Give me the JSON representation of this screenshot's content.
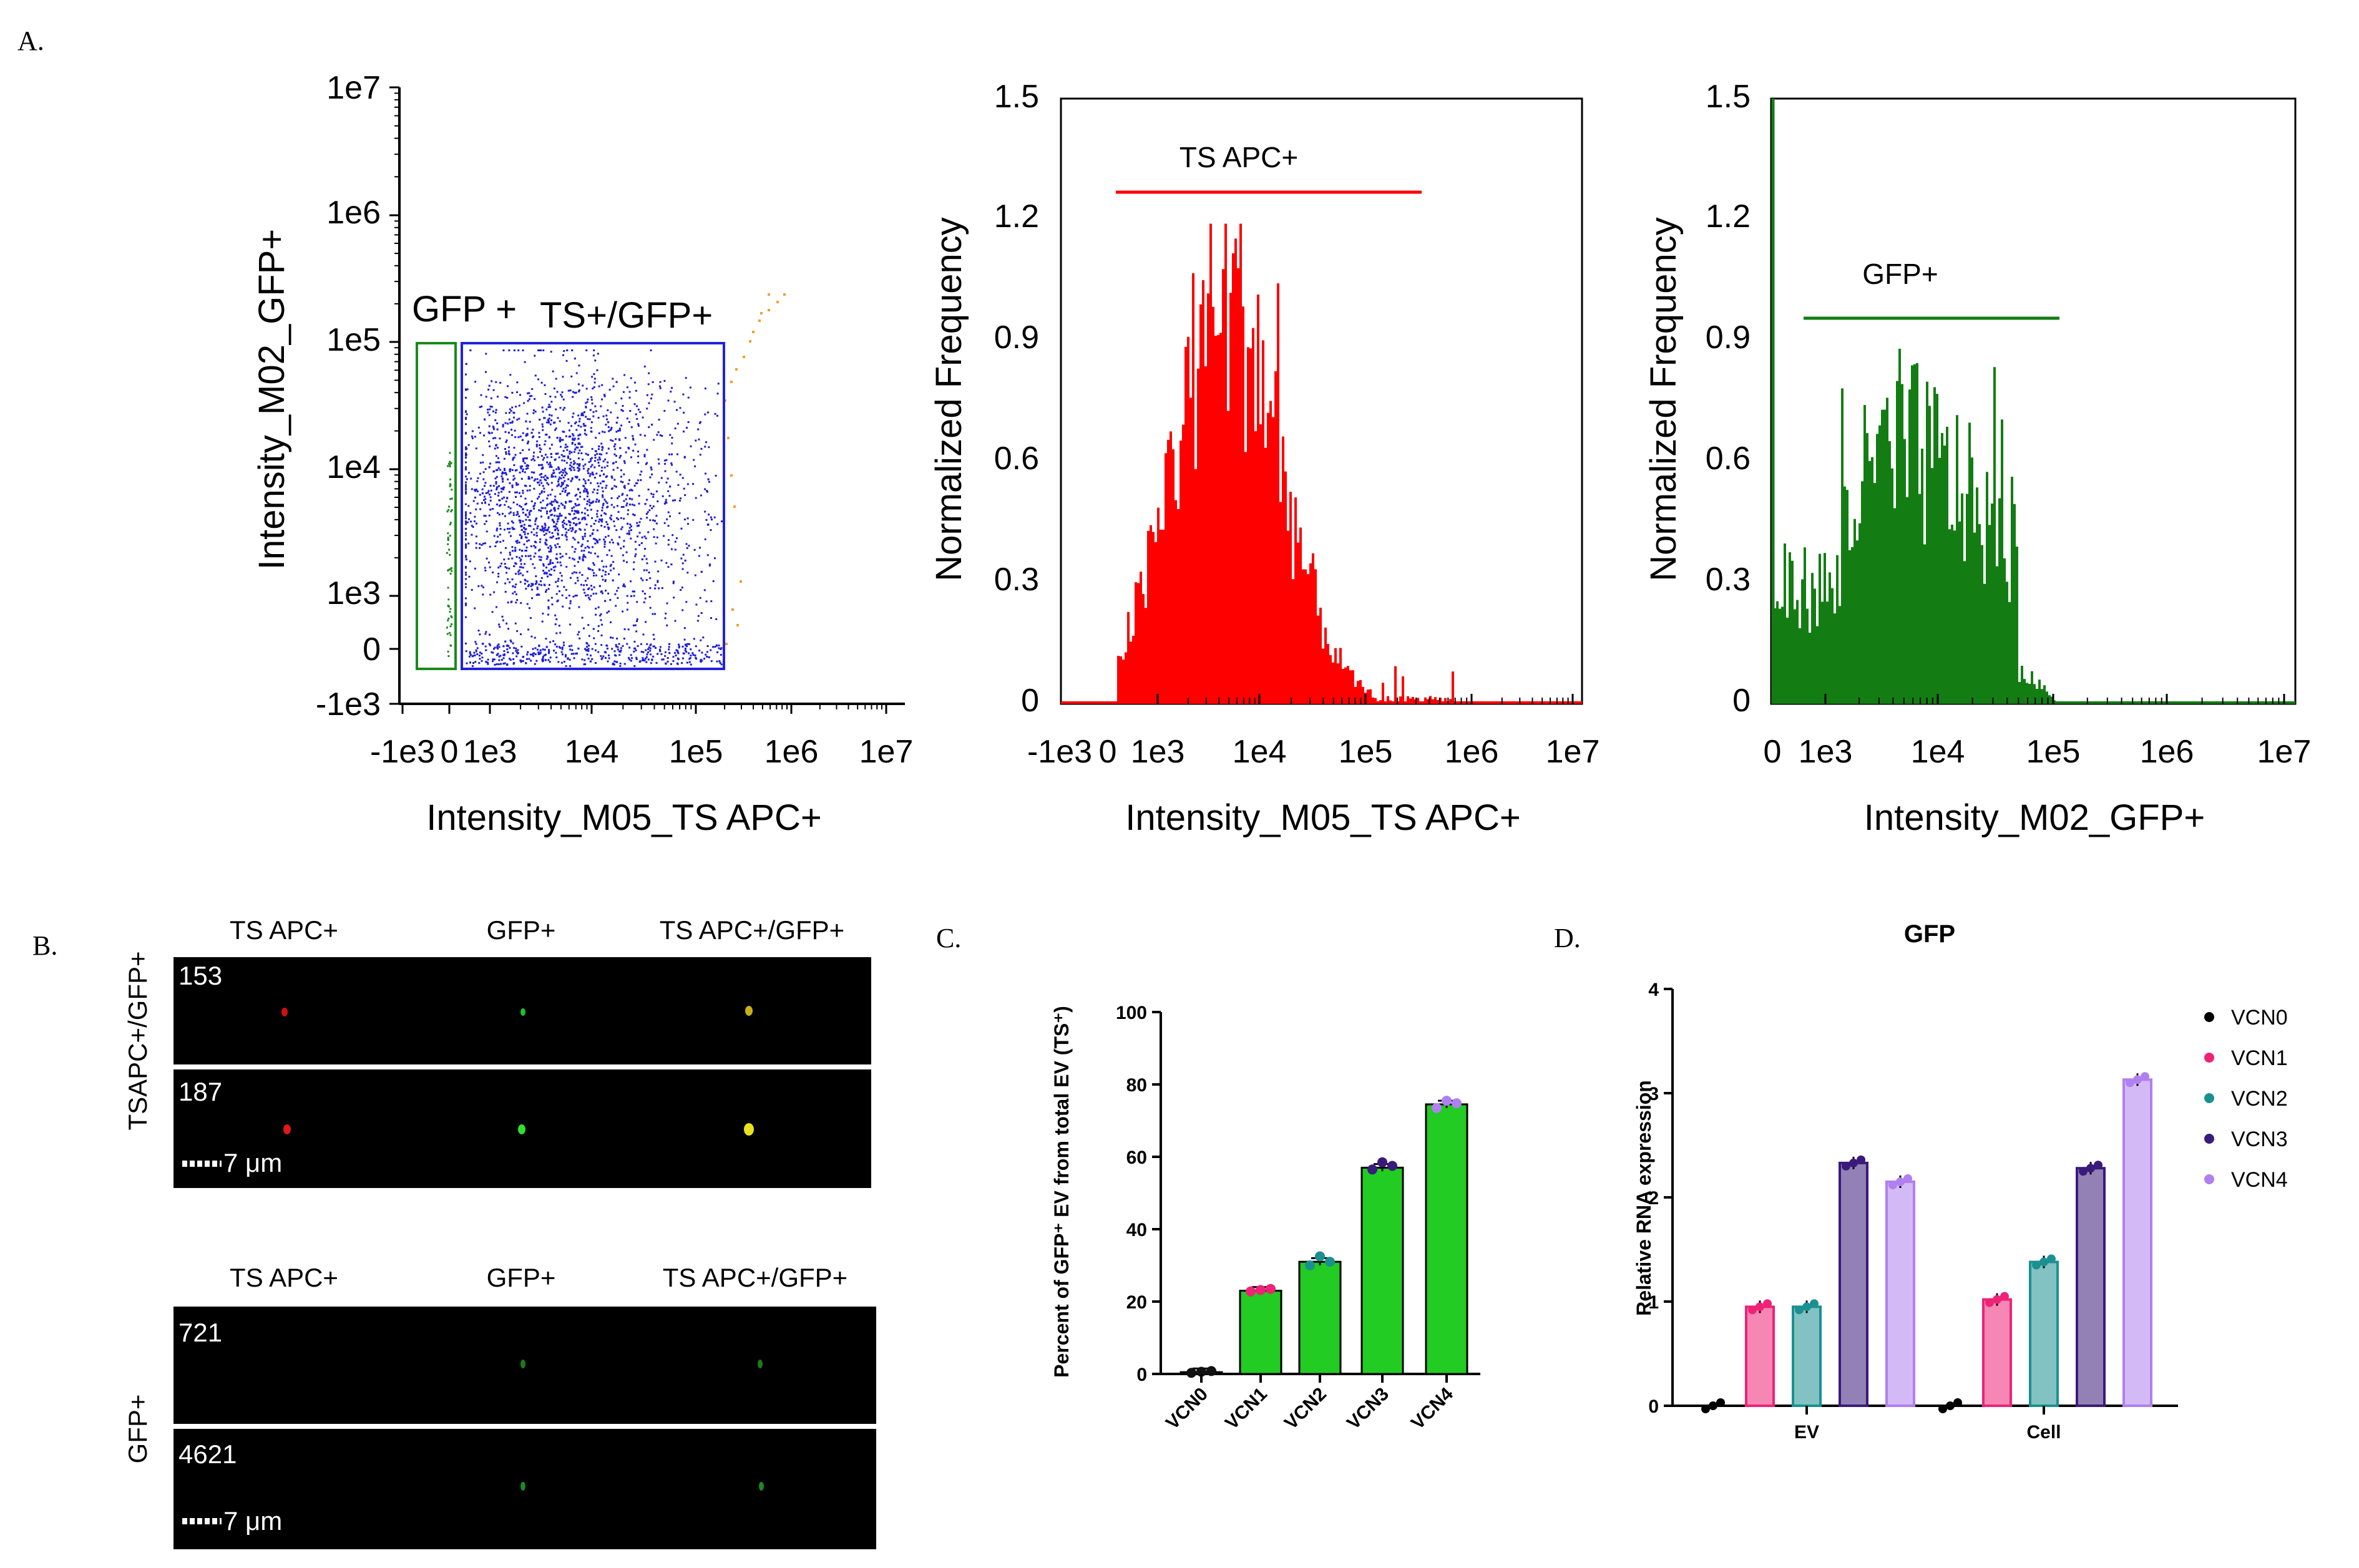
{
  "panel_letters": {
    "a": "A.",
    "b": "B.",
    "c": "C.",
    "d": "D."
  },
  "chart_data": [
    {
      "type": "scatter",
      "panel": "A-scatter",
      "xlabel": "Intensity_M05_TS APC+",
      "ylabel": "Intensity_M02_GFP+",
      "x_ticks": [
        "-1e3",
        "0",
        "1e3",
        "1e4",
        "1e5",
        "1e6",
        "1e7"
      ],
      "y_ticks": [
        "1e7",
        "1e6",
        "1e5",
        "1e4",
        "1e3",
        "0",
        "-1e3"
      ],
      "gates": [
        {
          "name": "GFP +",
          "color": "#1a8a1a"
        },
        {
          "name": "TS+/GFP+",
          "color": "#2222dd"
        }
      ],
      "point_color": "#1f1fd6",
      "outlier_color": "#f0a030"
    },
    {
      "type": "bar",
      "panel": "A-hist-red",
      "xlabel": "Intensity_M05_TS APC+",
      "ylabel": "Normalized Frequency",
      "x_ticks": [
        "-1e3",
        "0",
        "1e3",
        "1e4",
        "1e5",
        "1e6",
        "1e7"
      ],
      "y_ticks": [
        "0",
        "0.3",
        "0.6",
        "0.9",
        "1.2",
        "1.5"
      ],
      "ylim": [
        0,
        1.5
      ],
      "gate_label": "TS APC+",
      "color": "#ff0000",
      "peak": 1.19
    },
    {
      "type": "bar",
      "panel": "A-hist-green",
      "xlabel": "Intensity_M02_GFP+",
      "ylabel": "Normalized Frequency",
      "x_ticks": [
        "0",
        "1e3",
        "1e4",
        "1e5",
        "1e6",
        "1e7"
      ],
      "y_ticks": [
        "0",
        "0.3",
        "0.6",
        "0.9",
        "1.2",
        "1.5"
      ],
      "ylim": [
        0,
        1.5
      ],
      "gate_label": "GFP+",
      "color": "#137d13",
      "peak": 0.88
    },
    {
      "type": "bar",
      "panel": "C",
      "ylabel": "Percent of GFP⁺ EV from total EV (TS⁺)",
      "categories": [
        "VCN0",
        "VCN1",
        "VCN2",
        "VCN3",
        "VCN4"
      ],
      "values": [
        0.5,
        23,
        31,
        57,
        74.5
      ],
      "points": [
        [
          0.3,
          0.6,
          0.8
        ],
        [
          22.8,
          23.2,
          23.5
        ],
        [
          30,
          32.5,
          31
        ],
        [
          56.5,
          58.5,
          57.5
        ],
        [
          73.5,
          75.5,
          74.8
        ]
      ],
      "ylim": [
        0,
        100
      ],
      "y_ticks": [
        "0",
        "20",
        "40",
        "60",
        "80",
        "100"
      ],
      "color": "#22cc22"
    },
    {
      "type": "bar",
      "panel": "D",
      "title": "GFP",
      "ylabel": "Relative RNA expression",
      "categories": [
        "EV",
        "Cell"
      ],
      "ylim": [
        0,
        4
      ],
      "y_ticks": [
        "0",
        "1",
        "2",
        "3",
        "4"
      ],
      "series": [
        {
          "name": "VCN0",
          "color": "#000000",
          "values": [
            0,
            0
          ]
        },
        {
          "name": "VCN1",
          "color": "#ee2277",
          "values": [
            0.95,
            1.02
          ]
        },
        {
          "name": "VCN2",
          "color": "#1b9090",
          "values": [
            0.95,
            1.38
          ]
        },
        {
          "name": "VCN3",
          "color": "#3a1a7a",
          "values": [
            2.33,
            2.28
          ]
        },
        {
          "name": "VCN4",
          "color": "#b07ff0",
          "values": [
            2.15,
            3.13
          ]
        }
      ]
    }
  ],
  "imaging": {
    "col_labels_top": [
      "TS APC+",
      "GFP+",
      "TS APC+/GFP+"
    ],
    "col_labels_bottom": [
      "TS APC+",
      "GFP+",
      "TS APC+/GFP+"
    ],
    "group_top": "TSAPC+/GFP+",
    "group_bottom": "GFP+",
    "ids": [
      "153",
      "187",
      "721",
      "4621"
    ],
    "scale_text": "7 μm"
  }
}
